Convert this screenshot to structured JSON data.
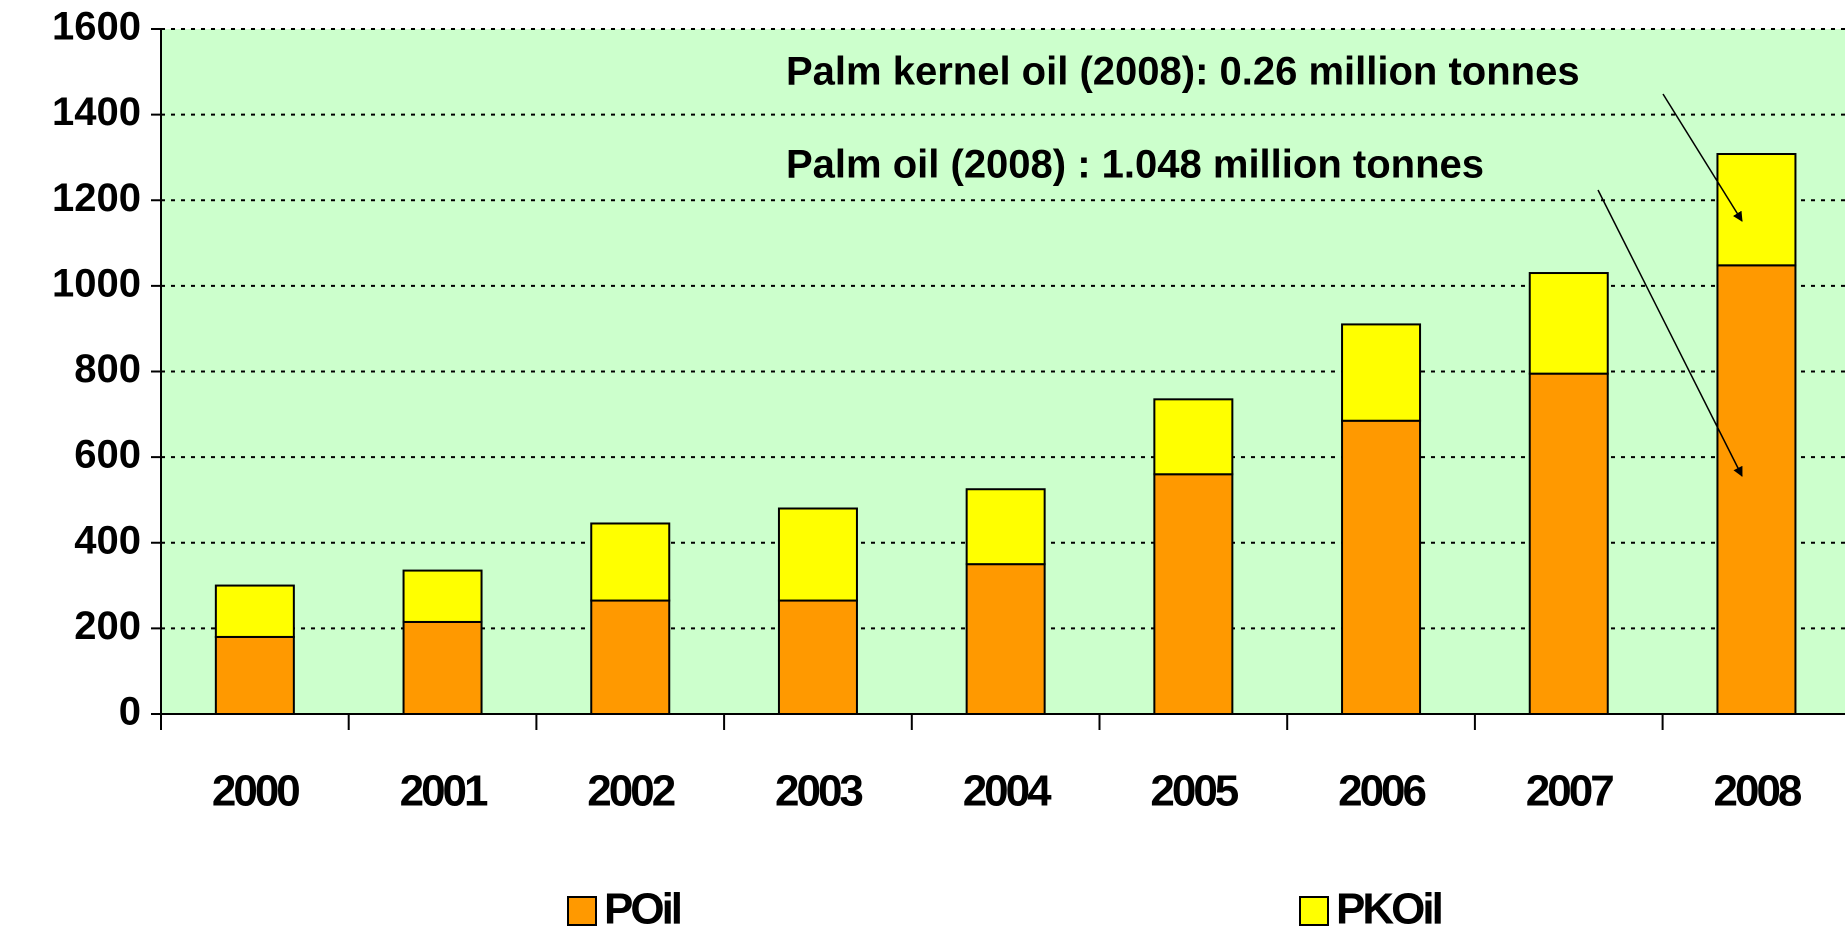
{
  "chart_data": {
    "type": "stacked_bar",
    "categories": [
      "2000",
      "2001",
      "2002",
      "2003",
      "2004",
      "2005",
      "2006",
      "2007",
      "2008"
    ],
    "series": [
      {
        "name": "POil",
        "color": "#ff9900",
        "values": [
          180,
          215,
          265,
          265,
          350,
          560,
          685,
          795,
          1048
        ]
      },
      {
        "name": "PKOil",
        "color": "#ffff00",
        "values": [
          120,
          120,
          180,
          215,
          175,
          175,
          225,
          235,
          260
        ]
      }
    ],
    "ylim": [
      0,
      1600
    ],
    "yticks": [
      0,
      200,
      400,
      600,
      800,
      1000,
      1200,
      1400,
      1600
    ],
    "grid": true,
    "background": "#ccffcc",
    "annotations": [
      "Palm kernel oil (2008): 0.26 million tonnes",
      "Palm oil (2008) : 1.048 million tonnes"
    ]
  }
}
